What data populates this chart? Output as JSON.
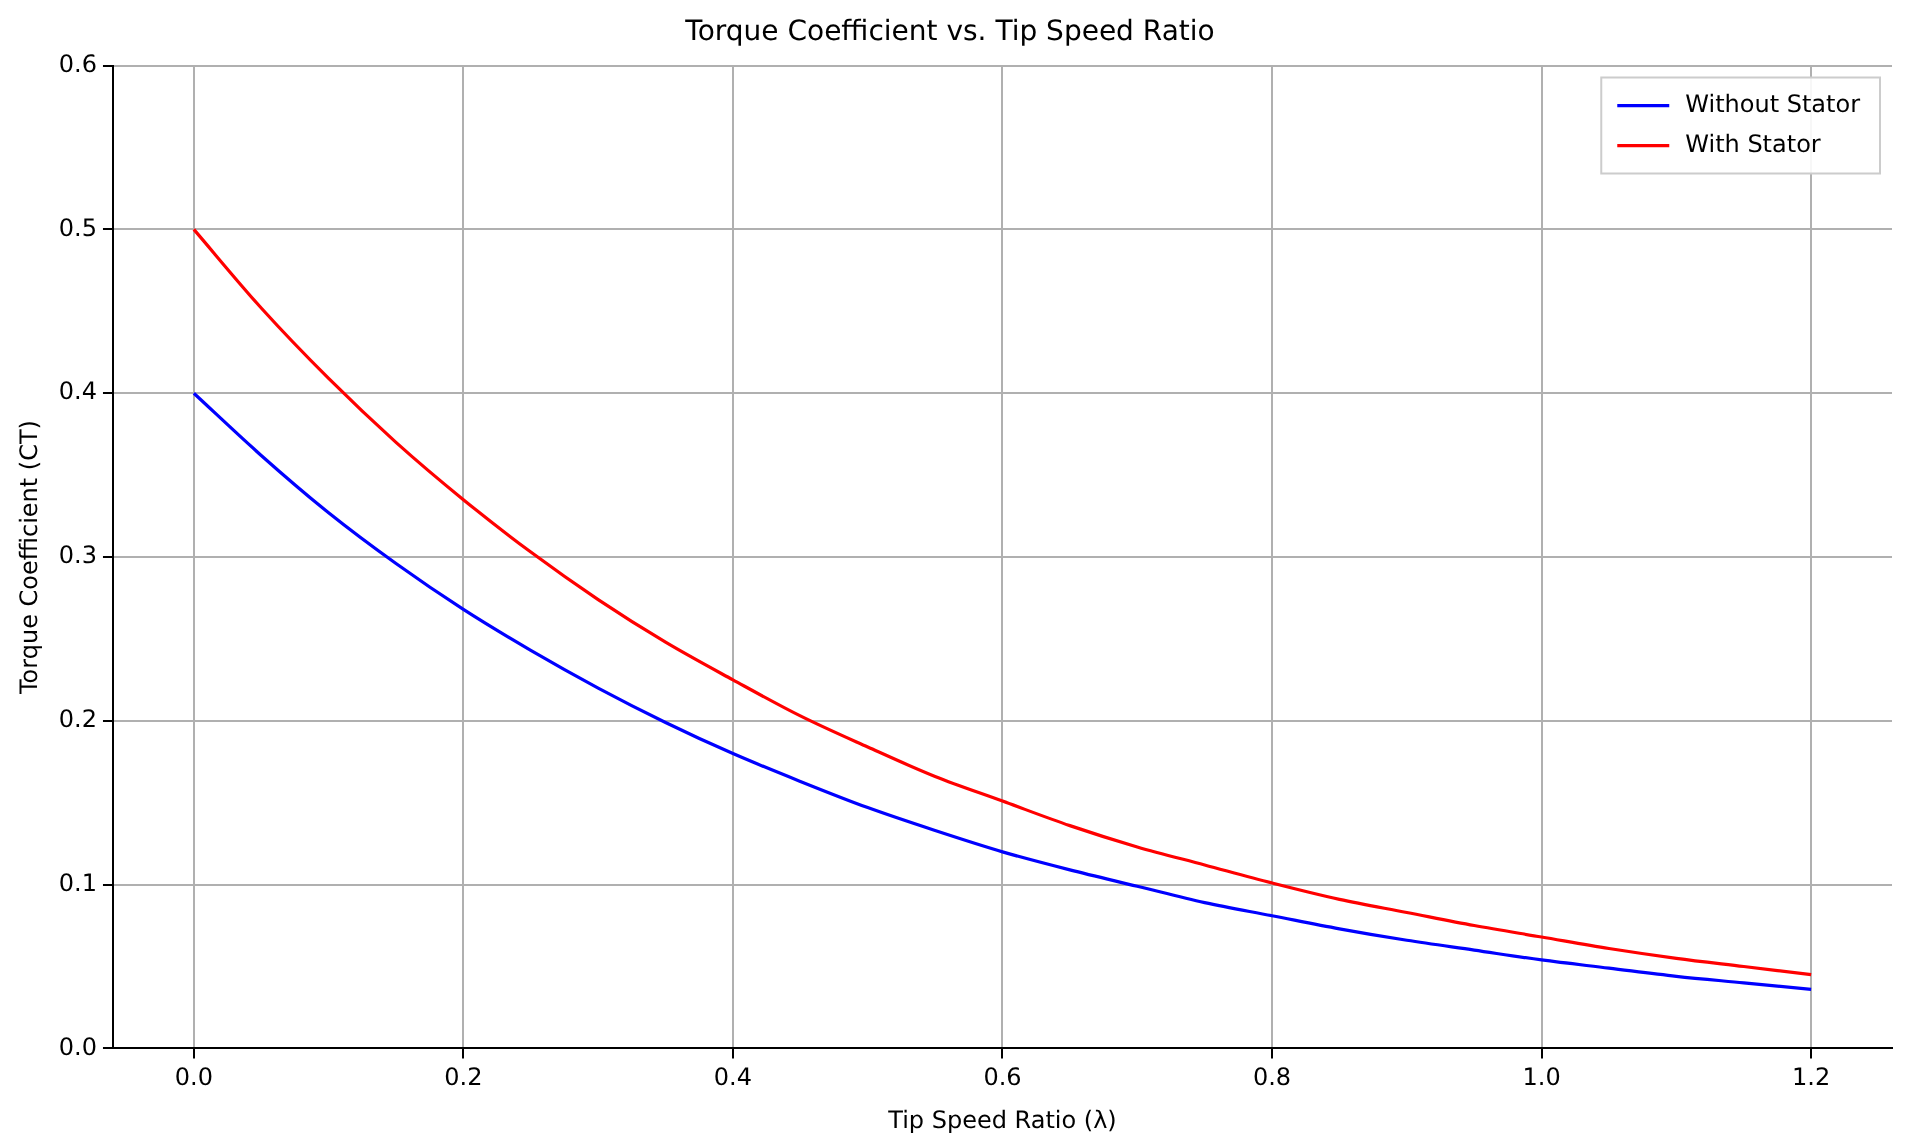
{
  "chart_data": {
    "type": "line",
    "title": "Torque Coefficient vs. Tip Speed Ratio",
    "xlabel": "Tip Speed Ratio (λ)",
    "ylabel": "Torque Coefficient (CT)",
    "x": [
      0,
      0.05,
      0.1,
      0.15,
      0.2,
      0.25,
      0.3,
      0.35,
      0.4,
      0.45,
      0.5,
      0.55,
      0.6,
      0.65,
      0.7,
      0.75,
      0.8,
      0.85,
      0.9,
      0.95,
      1.0,
      1.05,
      1.1,
      1.15,
      1.2
    ],
    "series": [
      {
        "name": "Without Stator",
        "color": "#0000ff",
        "values": [
          0.4,
          0.362,
          0.327,
          0.296,
          0.268,
          0.243,
          0.22,
          0.199,
          0.18,
          0.163,
          0.147,
          0.133,
          0.12,
          0.109,
          0.099,
          0.089,
          0.081,
          0.073,
          0.066,
          0.06,
          0.054,
          0.049,
          0.044,
          0.04,
          0.036
        ]
      },
      {
        "name": "With Stator",
        "color": "#ff0000",
        "values": [
          0.5,
          0.452,
          0.409,
          0.37,
          0.335,
          0.303,
          0.274,
          0.248,
          0.225,
          0.203,
          0.184,
          0.166,
          0.151,
          0.136,
          0.123,
          0.112,
          0.101,
          0.091,
          0.083,
          0.075,
          0.068,
          0.061,
          0.055,
          0.05,
          0.045
        ]
      }
    ],
    "xlim": [
      -0.06,
      1.26
    ],
    "ylim": [
      0,
      0.6
    ],
    "xticks": [
      {
        "value": 0,
        "label": "0.0"
      },
      {
        "value": 0.2,
        "label": "0.2"
      },
      {
        "value": 0.4,
        "label": "0.4"
      },
      {
        "value": 0.6,
        "label": "0.6"
      },
      {
        "value": 0.8,
        "label": "0.8"
      },
      {
        "value": 1.0,
        "label": "1.0"
      },
      {
        "value": 1.2,
        "label": "1.2"
      }
    ],
    "yticks": [
      {
        "value": 0,
        "label": "0.0"
      },
      {
        "value": 0.1,
        "label": "0.1"
      },
      {
        "value": 0.2,
        "label": "0.2"
      },
      {
        "value": 0.3,
        "label": "0.3"
      },
      {
        "value": 0.4,
        "label": "0.4"
      },
      {
        "value": 0.5,
        "label": "0.5"
      },
      {
        "value": 0.6,
        "label": "0.6"
      }
    ],
    "grid": true,
    "legend": "top right",
    "marker": "none",
    "line_style": "solid"
  }
}
